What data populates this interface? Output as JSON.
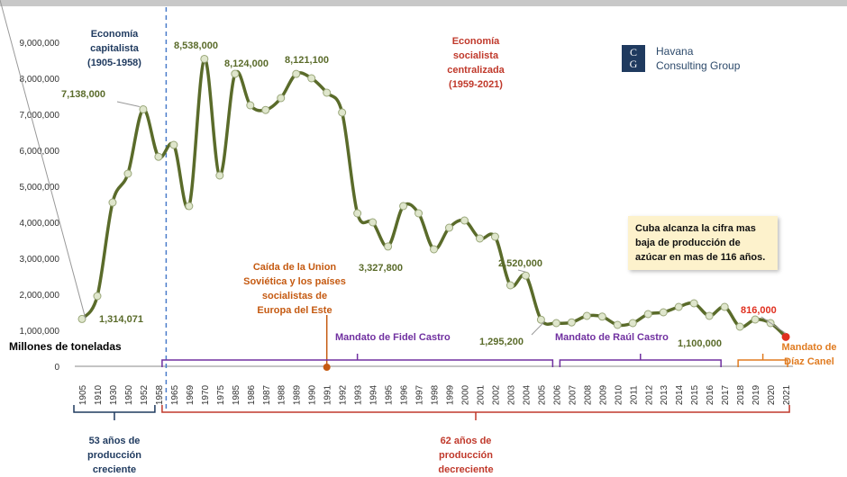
{
  "unit_label": "Millones de toneladas",
  "logo": {
    "initials": [
      "C",
      "G"
    ],
    "line1": "Havana",
    "line2": "Consulting Group"
  },
  "eras": {
    "capitalist": [
      "Economía",
      "capitalista",
      "(1905-1958)"
    ],
    "socialist": [
      "Economía",
      "socialista",
      "centralizada",
      "(1959-2021)"
    ]
  },
  "event": [
    "Caída de la Union",
    "Soviética  y los países",
    "socialistas de",
    "Europa del Este"
  ],
  "note": "Cuba alcanza la cifra mas baja de producción de azúcar en mas de 116 años.",
  "periods": {
    "fidel": "Mandato de Fidel Castro",
    "raul": "Mandato de Raúl Castro",
    "diaz": [
      "Mandato de",
      "Díaz Canel"
    ]
  },
  "bottom": {
    "growth": [
      "53 años de",
      "producción",
      "creciente"
    ],
    "decline": [
      "62 años de",
      "producción",
      "decreciente"
    ]
  },
  "colors": {
    "line": "#5a6b2a",
    "annotation": "#5a6b2a",
    "fidel": "#7030a0",
    "raul": "#7030a0",
    "diaz": "#e07b20",
    "decline": "#c0392b",
    "growth": "#1f3a5f",
    "event": "#c55a11",
    "capitalist": "#1f3a5f",
    "socialist": "#c0392b",
    "last_point": "#e03020"
  },
  "chart_data": {
    "type": "line",
    "title": "",
    "xlabel": "",
    "ylabel": "Millones de toneladas",
    "ylim": [
      0,
      9000000
    ],
    "yticks": [
      "0",
      "1,000,000",
      "2,000,000",
      "3,000,000",
      "4,000,000",
      "5,000,000",
      "6,000,000",
      "7,000,000",
      "8,000,000",
      "9,000,000"
    ],
    "categories": [
      "1905",
      "1910",
      "1930",
      "1950",
      "1952",
      "1958",
      "1965",
      "1969",
      "1970",
      "1975",
      "1985",
      "1986",
      "1987",
      "1988",
      "1989",
      "1990",
      "1991",
      "1992",
      "1993",
      "1994",
      "1995",
      "1996",
      "1997",
      "1998",
      "1999",
      "2000",
      "2001",
      "2002",
      "2003",
      "2004",
      "2005",
      "2006",
      "2007",
      "2008",
      "2009",
      "2010",
      "2011",
      "2012",
      "2013",
      "2014",
      "2015",
      "2016",
      "2017",
      "2018",
      "2019",
      "2020",
      "2021"
    ],
    "series": [
      {
        "values": [
          1314071,
          1950000,
          4550000,
          5350000,
          7138000,
          5820000,
          6150000,
          4450000,
          8538000,
          5300000,
          8124000,
          7250000,
          7120000,
          7450000,
          8121100,
          8000000,
          7600000,
          7050000,
          4250000,
          4000000,
          3327800,
          4450000,
          4250000,
          3250000,
          3850000,
          4050000,
          3550000,
          3600000,
          2250000,
          2520000,
          1295200,
          1200000,
          1220000,
          1400000,
          1380000,
          1150000,
          1200000,
          1450000,
          1500000,
          1650000,
          1750000,
          1400000,
          1650000,
          1100000,
          1300000,
          1200000,
          816000
        ]
      }
    ],
    "annotations": [
      {
        "text": "1,314,071"
      },
      {
        "text": "7,138,000"
      },
      {
        "text": "8,538,000"
      },
      {
        "text": "8,124,000"
      },
      {
        "text": "8,121,100"
      },
      {
        "text": "3,327,800"
      },
      {
        "text": "2,520,000"
      },
      {
        "text": "1,295,200"
      },
      {
        "text": "1,100,000"
      },
      {
        "text": "816,000"
      }
    ],
    "grid": false,
    "legend": "none"
  }
}
